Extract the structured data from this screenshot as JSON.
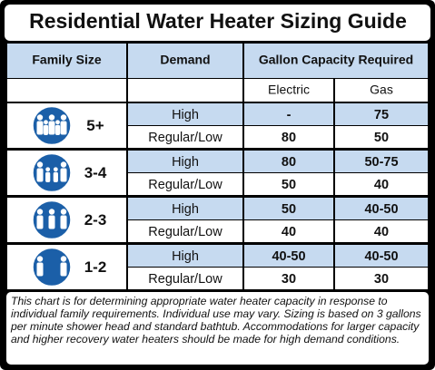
{
  "title": "Residential Water Heater Sizing Guide",
  "table": {
    "headers": [
      "Family Size",
      "Demand",
      "Gallon Capacity Required"
    ],
    "subheaders": [
      "Electric",
      "Gas"
    ],
    "groups": [
      {
        "family_size": "5+",
        "rows": [
          [
            "High",
            "-",
            "75"
          ],
          [
            "Regular/Low",
            "80",
            "50"
          ]
        ]
      },
      {
        "family_size": "3-4",
        "rows": [
          [
            "High",
            "80",
            "50-75"
          ],
          [
            "Regular/Low",
            "50",
            "40"
          ]
        ]
      },
      {
        "family_size": "2-3",
        "rows": [
          [
            "High",
            "50",
            "40-50"
          ],
          [
            "Regular/Low",
            "40",
            "40"
          ]
        ]
      },
      {
        "family_size": "1-2",
        "rows": [
          [
            "High",
            "40-50",
            "40-50"
          ],
          [
            "Regular/Low",
            "30",
            "30"
          ]
        ]
      }
    ]
  },
  "note": "This chart is for determining appropriate water heater capacity in response to individual family requirements.  Individual use may vary.  Sizing is based on 3 gallons per minute shower head and standard bathtub. Accommodations for larger capacity and higher recovery water heaters should be made for high demand conditions."
}
